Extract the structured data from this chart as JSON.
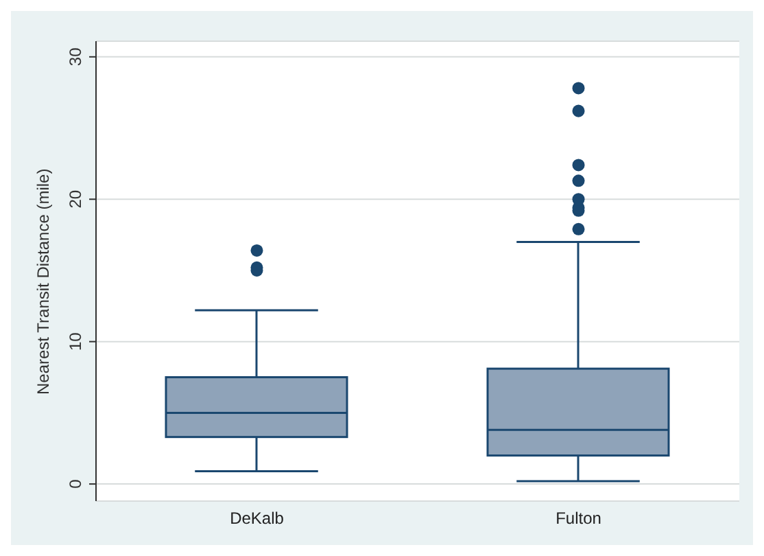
{
  "chart_data": {
    "type": "box",
    "ylabel": "Nearest Transit Distance (mile)",
    "categories": [
      "DeKalb",
      "Fulton"
    ],
    "color": "#1a476f",
    "boxes": [
      {
        "low": 0.9,
        "q1": 3.3,
        "median": 5.0,
        "q3": 7.5,
        "high": 12.2,
        "outliers": [
          16.4,
          15.2,
          15.0
        ]
      },
      {
        "low": 0.2,
        "q1": 2.0,
        "median": 3.8,
        "q3": 8.1,
        "high": 17.0,
        "outliers": [
          17.9,
          19.2,
          19.4,
          20.0,
          21.3,
          22.4,
          26.2,
          27.8
        ]
      }
    ],
    "ylim": [
      -1.2,
      31.1
    ],
    "yticks": [
      0,
      10,
      20,
      30
    ],
    "grid": "y",
    "marker": "circle"
  }
}
